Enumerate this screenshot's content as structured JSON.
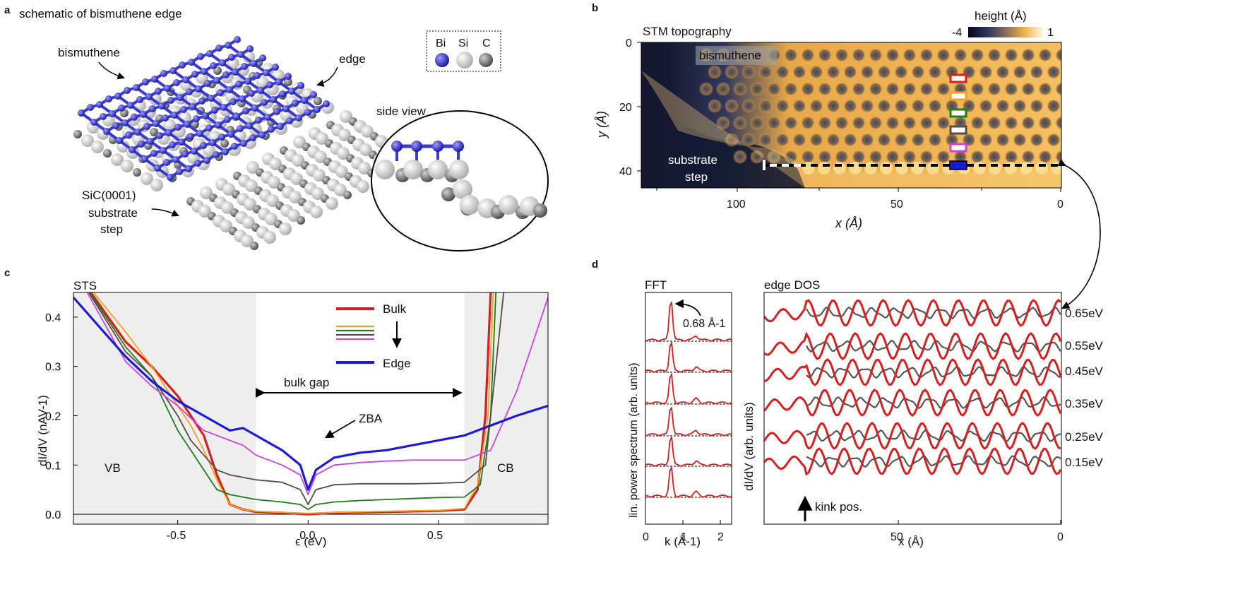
{
  "panels": {
    "a": {
      "letter": "a",
      "title": "schematic of bismuthene edge",
      "label_bismuthene": "bismuthene",
      "label_edge": "edge",
      "label_substrate_1": "SiC(0001)",
      "label_substrate_2": "substrate",
      "label_substrate_3": "step",
      "legend": [
        "Bi",
        "Si",
        "C"
      ],
      "side_view": "side view"
    },
    "b": {
      "letter": "b",
      "title": "STM topography",
      "colorbar_title": "height (Å)",
      "colorbar_min": "-4",
      "colorbar_max": "1",
      "label_bismuthene": "bismuthene",
      "label_step_1": "substrate",
      "label_step_2": "step",
      "xlabel": "x (Å)",
      "ylabel": "y (Å)",
      "xticks": [
        "100",
        "50",
        "0"
      ],
      "yticks": [
        "0",
        "20",
        "40"
      ]
    },
    "c": {
      "letter": "c",
      "title": "STS",
      "ylabel": "dI/dV (nAV-1)",
      "xlabel": "ϵ (eV)",
      "yticks": [
        "0.0",
        "0.1",
        "0.2",
        "0.3",
        "0.4"
      ],
      "xticks": [
        "-0.5",
        "0.0",
        "0.5"
      ],
      "bulk_gap": "bulk gap",
      "zba": "ZBA",
      "vb": "VB",
      "cb": "CB",
      "legend_bulk": "Bulk",
      "legend_edge": "Edge"
    },
    "d": {
      "letter": "d",
      "fft_title": "FFT",
      "fft_ylabel": "lin. power spectrum (arb. units)",
      "fft_xlabel": "k (Å-1)",
      "fft_xticks": [
        "0",
        "1",
        "2"
      ],
      "fft_peak": "0.68 Å-1",
      "dos_title": "edge DOS",
      "dos_ylabel": "dI/dV (arb. units)",
      "dos_xlabel": "x (Å)",
      "dos_xticks": [
        "50",
        "0"
      ],
      "kink": "kink pos.",
      "energies": [
        "0.65eV",
        "0.55eV",
        "0.45eV",
        "0.35eV",
        "0.25eV",
        "0.15eV"
      ]
    }
  },
  "colors": {
    "bulk": "#d81e1e",
    "orange": "#f5a21b",
    "green": "#1b7d1b",
    "brown": "#5a4a42",
    "magenta": "#cc44dd",
    "edge": "#1a1ad8",
    "gray": "#555555",
    "bismuth": "#3a3ad0",
    "gap_shade": "#eeeeee"
  },
  "chart_data": [
    {
      "type": "line",
      "title": "STS",
      "xlabel": "ϵ (eV)",
      "ylabel": "dI/dV (nAV-1)",
      "xlim": [
        -0.9,
        0.92
      ],
      "ylim": [
        -0.02,
        0.45
      ],
      "shaded_regions": [
        [
          -0.9,
          -0.2
        ],
        [
          0.6,
          0.92
        ]
      ],
      "series": [
        {
          "name": "Bulk",
          "color": "#d81e1e",
          "x": [
            -0.9,
            -0.7,
            -0.6,
            -0.5,
            -0.45,
            -0.4,
            -0.35,
            -0.3,
            -0.25,
            -0.2,
            -0.1,
            0.0,
            0.1,
            0.2,
            0.3,
            0.4,
            0.5,
            0.6,
            0.65,
            0.68,
            0.7
          ],
          "y": [
            0.5,
            0.35,
            0.3,
            0.24,
            0.2,
            0.16,
            0.08,
            0.02,
            0.01,
            0.005,
            0.003,
            0.0,
            0.003,
            0.004,
            0.005,
            0.006,
            0.007,
            0.01,
            0.05,
            0.2,
            0.45
          ]
        },
        {
          "name": "",
          "color": "#f5a21b",
          "x": [
            -0.9,
            -0.7,
            -0.6,
            -0.5,
            -0.45,
            -0.4,
            -0.35,
            -0.3,
            -0.25,
            -0.2,
            -0.1,
            0.0,
            0.1,
            0.2,
            0.3,
            0.4,
            0.5,
            0.6,
            0.65,
            0.69,
            0.71
          ],
          "y": [
            0.5,
            0.37,
            0.3,
            0.22,
            0.18,
            0.13,
            0.07,
            0.02,
            0.01,
            0.006,
            0.004,
            0.002,
            0.004,
            0.005,
            0.006,
            0.007,
            0.008,
            0.012,
            0.06,
            0.2,
            0.45
          ]
        },
        {
          "name": "",
          "color": "#1b7d1b",
          "x": [
            -0.9,
            -0.7,
            -0.6,
            -0.5,
            -0.45,
            -0.4,
            -0.35,
            -0.3,
            -0.2,
            -0.1,
            -0.03,
            0.0,
            0.03,
            0.1,
            0.2,
            0.3,
            0.4,
            0.5,
            0.6,
            0.66,
            0.7,
            0.72
          ],
          "y": [
            0.5,
            0.34,
            0.28,
            0.17,
            0.13,
            0.09,
            0.05,
            0.04,
            0.03,
            0.025,
            0.02,
            0.01,
            0.02,
            0.025,
            0.028,
            0.03,
            0.032,
            0.034,
            0.035,
            0.06,
            0.2,
            0.45
          ]
        },
        {
          "name": "",
          "color": "#5a4a42",
          "x": [
            -0.9,
            -0.7,
            -0.6,
            -0.5,
            -0.45,
            -0.4,
            -0.35,
            -0.3,
            -0.2,
            -0.1,
            -0.03,
            0.0,
            0.03,
            0.1,
            0.2,
            0.3,
            0.4,
            0.5,
            0.6,
            0.68,
            0.72,
            0.75
          ],
          "y": [
            0.5,
            0.33,
            0.28,
            0.2,
            0.15,
            0.12,
            0.09,
            0.08,
            0.07,
            0.065,
            0.05,
            0.02,
            0.05,
            0.06,
            0.062,
            0.062,
            0.062,
            0.063,
            0.065,
            0.1,
            0.3,
            0.45
          ]
        },
        {
          "name": "",
          "color": "#cc44dd",
          "x": [
            -0.9,
            -0.7,
            -0.6,
            -0.5,
            -0.4,
            -0.3,
            -0.25,
            -0.2,
            -0.1,
            -0.03,
            0.0,
            0.03,
            0.1,
            0.2,
            0.3,
            0.4,
            0.5,
            0.6,
            0.7,
            0.8,
            0.92
          ],
          "y": [
            0.5,
            0.31,
            0.26,
            0.22,
            0.17,
            0.15,
            0.14,
            0.12,
            0.1,
            0.08,
            0.04,
            0.08,
            0.1,
            0.105,
            0.108,
            0.11,
            0.11,
            0.11,
            0.13,
            0.25,
            0.44
          ]
        },
        {
          "name": "Edge",
          "color": "#1a1ad8",
          "x": [
            -0.9,
            -0.8,
            -0.7,
            -0.6,
            -0.5,
            -0.4,
            -0.3,
            -0.25,
            -0.2,
            -0.1,
            -0.03,
            0.0,
            0.03,
            0.1,
            0.2,
            0.3,
            0.4,
            0.5,
            0.6,
            0.7,
            0.8,
            0.92
          ],
          "y": [
            0.44,
            0.38,
            0.32,
            0.27,
            0.23,
            0.2,
            0.17,
            0.175,
            0.16,
            0.13,
            0.1,
            0.05,
            0.09,
            0.115,
            0.125,
            0.13,
            0.14,
            0.15,
            0.16,
            0.18,
            0.2,
            0.22
          ]
        }
      ]
    },
    {
      "type": "line",
      "title": "FFT",
      "xlabel": "k (Å-1)",
      "ylabel": "lin. power spectrum (arb. units)",
      "xlim": [
        0,
        2.3
      ],
      "peak_k": 0.68,
      "series_count": 6
    },
    {
      "type": "line",
      "title": "edge DOS",
      "xlabel": "x (Å)",
      "ylabel": "dI/dV (arb. units)",
      "xlim": [
        77,
        0
      ],
      "energies_eV": [
        0.65,
        0.55,
        0.45,
        0.35,
        0.25,
        0.15
      ],
      "kink_position_x": 70
    }
  ]
}
